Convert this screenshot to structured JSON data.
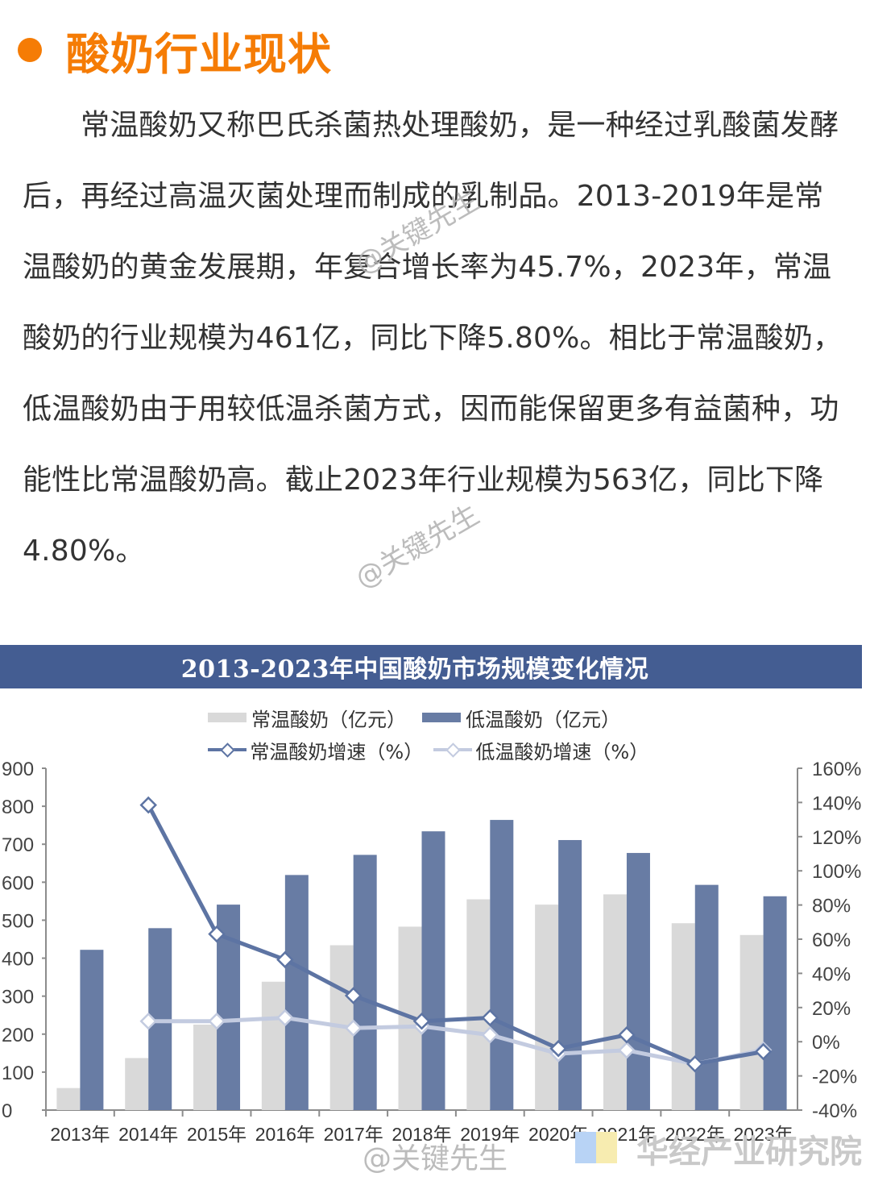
{
  "heading": {
    "title": "酸奶行业现状",
    "bullet_color": "#f57c05"
  },
  "article": {
    "paragraph": "常温酸奶又称巴氏杀菌热处理酸奶，是一种经过乳酸菌发酵后，再经过高温灭菌处理而制成的乳制品。2013-2019年是常温酸奶的黄金发展期，年复合增长率为45.7%，2023年，常温酸奶的行业规模为461亿，同比下降5.80%。相比于常温酸奶，低温酸奶由于用较低温杀菌方式，因而能保留更多有益菌种，功能性比常温酸奶高。截止2023年行业规模为563亿，同比下降4.80%。"
  },
  "watermarks": {
    "author": "@关键先生",
    "source": "华经产业研究院"
  },
  "chart": {
    "title": "2013-2023年中国酸奶市场规模变化情况",
    "title_bar_color": "#445d92",
    "legend": [
      {
        "label": "常温酸奶（亿元）",
        "type": "bar",
        "color": "#d9d9d9"
      },
      {
        "label": "低温酸奶（亿元）",
        "type": "bar",
        "color": "#687ca4"
      },
      {
        "label": "常温酸奶增速（%）",
        "type": "line",
        "color": "#5d74a3"
      },
      {
        "label": "低温酸奶增速（%）",
        "type": "line",
        "color": "#c3cbe0"
      }
    ],
    "y_left_ticks": [
      "900",
      "800",
      "700",
      "600",
      "500",
      "400",
      "300",
      "200",
      "100",
      "0"
    ],
    "y_right_ticks": [
      "160%",
      "140%",
      "120%",
      "100%",
      "80%",
      "60%",
      "40%",
      "20%",
      "0%",
      "-20%",
      "-40%"
    ]
  },
  "chart_data": {
    "type": "bar",
    "title": "2013-2023年中国酸奶市场规模变化情况",
    "xlabel": "",
    "ylabel": "亿元",
    "y2label": "%",
    "categories": [
      "2013年",
      "2014年",
      "2015年",
      "2016年",
      "2017年",
      "2018年",
      "2019年",
      "2020年",
      "2021年",
      "2022年",
      "2023年"
    ],
    "ylim": [
      0,
      900
    ],
    "y2lim": [
      -40,
      160
    ],
    "legend_position": "top",
    "grid": false,
    "series": [
      {
        "name": "常温酸奶（亿元）",
        "type": "bar",
        "axis": "left",
        "color": "#d9d9d9",
        "values": [
          58,
          137,
          225,
          338,
          434,
          483,
          555,
          541,
          568,
          492,
          461
        ]
      },
      {
        "name": "低温酸奶（亿元）",
        "type": "bar",
        "axis": "left",
        "color": "#687ca4",
        "values": [
          422,
          479,
          541,
          619,
          672,
          734,
          764,
          711,
          677,
          593,
          563
        ]
      },
      {
        "name": "常温酸奶增速（%）",
        "type": "line",
        "axis": "right",
        "color": "#5d74a3",
        "values": [
          null,
          138.5,
          63,
          48,
          27,
          12,
          14,
          -4,
          4,
          -13,
          -5.8
        ]
      },
      {
        "name": "低温酸奶增速（%）",
        "type": "line",
        "axis": "right",
        "color": "#c3cbe0",
        "values": [
          null,
          12,
          12,
          14,
          8,
          9,
          4,
          -7,
          -5,
          -13,
          -4.8
        ]
      }
    ]
  }
}
